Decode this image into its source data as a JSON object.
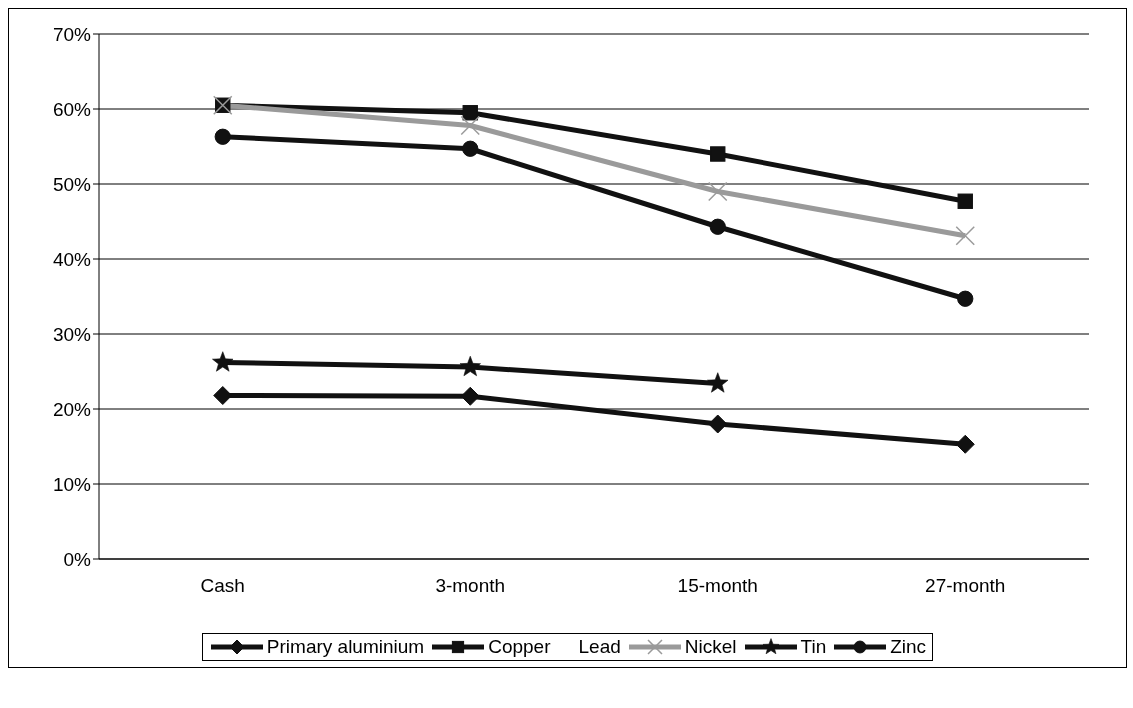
{
  "chart_data": {
    "type": "line",
    "categories": [
      "Cash",
      "3-month",
      "15-month",
      "27-month"
    ],
    "series": [
      {
        "name": "Primary aluminium",
        "color": "#111111",
        "marker": "diamond",
        "values": [
          21.8,
          21.7,
          18.0,
          15.3
        ]
      },
      {
        "name": "Copper",
        "color": "#111111",
        "marker": "square",
        "values": [
          60.5,
          59.5,
          54.0,
          47.7
        ]
      },
      {
        "name": "Lead",
        "marker": "none",
        "values": [
          null,
          null,
          null,
          null
        ]
      },
      {
        "name": "Nickel",
        "color": "#9a9a9a",
        "marker": "cross",
        "values": [
          60.5,
          57.8,
          49.0,
          43.1
        ]
      },
      {
        "name": "Tin",
        "color": "#111111",
        "marker": "star",
        "values": [
          26.2,
          25.6,
          23.4,
          null
        ]
      },
      {
        "name": "Zinc",
        "color": "#111111",
        "marker": "circle",
        "values": [
          56.3,
          54.7,
          44.3,
          34.7
        ]
      }
    ],
    "ylim": [
      0,
      70
    ],
    "yticks": [
      {
        "value": 0,
        "label": "0%"
      },
      {
        "value": 10,
        "label": "10%"
      },
      {
        "value": 20,
        "label": "20%"
      },
      {
        "value": 30,
        "label": "30%"
      },
      {
        "value": 40,
        "label": "40%"
      },
      {
        "value": 50,
        "label": "50%"
      },
      {
        "value": 60,
        "label": "60%"
      },
      {
        "value": 70,
        "label": "70%"
      }
    ],
    "grid": "y",
    "legend": "bottom"
  }
}
